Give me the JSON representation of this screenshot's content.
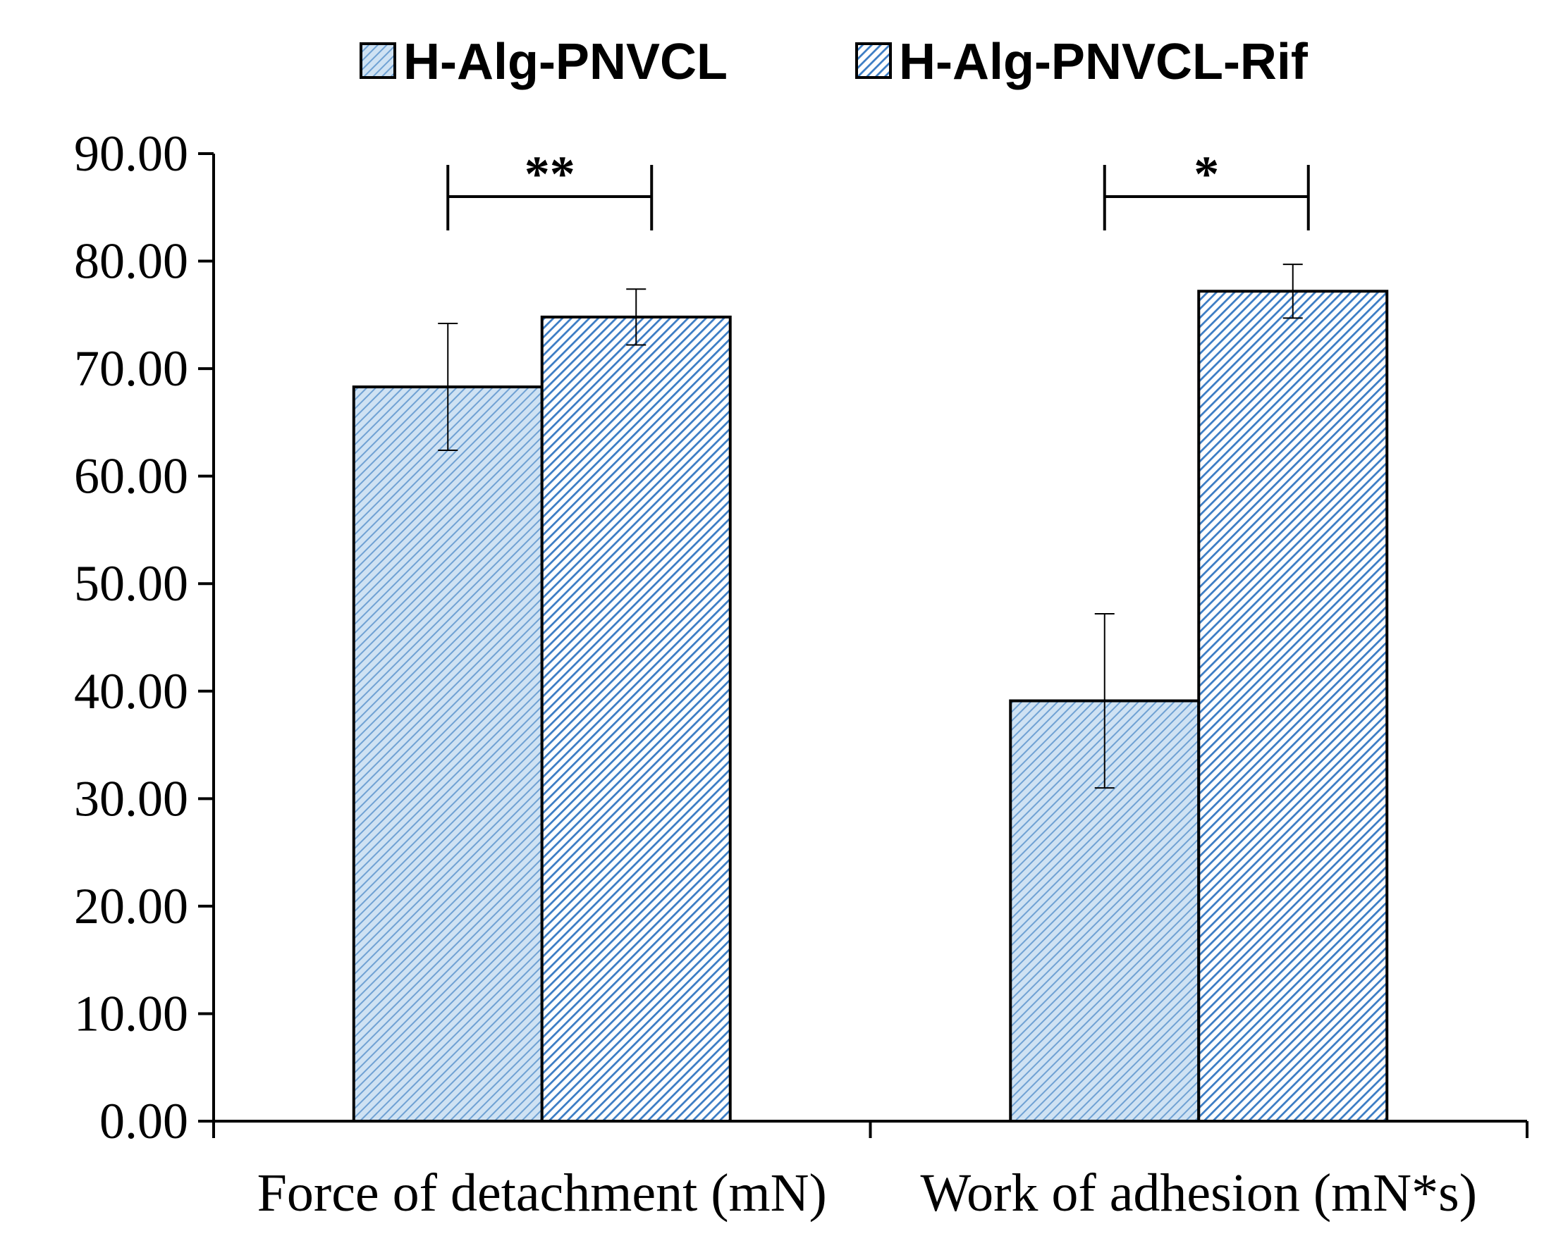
{
  "chart_data": {
    "type": "bar",
    "title": "",
    "xlabel": "",
    "ylabel": "",
    "categories": [
      "Force of detachment (mN)",
      "Work of adhesion (mN*s)"
    ],
    "series": [
      {
        "name": "H-Alg-PNVCL",
        "values": [
          68.3,
          39.1
        ],
        "errors": [
          5.9,
          8.1
        ],
        "color": "#9dc3e6",
        "pattern": "light-diagonal"
      },
      {
        "name": "H-Alg-PNVCL-Rif",
        "values": [
          74.8,
          77.2
        ],
        "errors": [
          2.6,
          2.5
        ],
        "color": "#2e75b6",
        "pattern": "dark-diagonal"
      }
    ],
    "ylim": [
      0,
      90
    ],
    "yticks": [
      "0.00",
      "10.00",
      "20.00",
      "30.00",
      "40.00",
      "50.00",
      "60.00",
      "70.00",
      "80.00",
      "90.00"
    ],
    "ytick_values": [
      0,
      10,
      20,
      30,
      40,
      50,
      60,
      70,
      80,
      90
    ],
    "grid": false,
    "legend_position": "top-center",
    "significance": [
      {
        "category": 0,
        "label": "**",
        "level": 86
      },
      {
        "category": 1,
        "label": "*",
        "level": 86
      }
    ]
  }
}
